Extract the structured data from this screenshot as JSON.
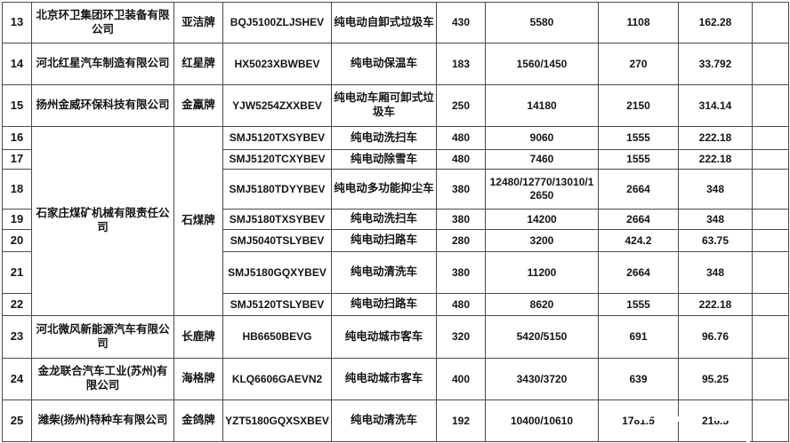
{
  "page": {
    "background_color": "#ffffff",
    "border_color": "#4a4a4a",
    "text_color": "#141414"
  },
  "table": {
    "rows": [
      {
        "no": "13",
        "company": "北京环卫集团环卫装备有限公司",
        "brand": "亚洁牌",
        "model": "BQJ5100ZLJSHEV",
        "vehicle_type": "纯电动自卸式垃圾车",
        "n1": "430",
        "n2": "5580",
        "n3": "1108",
        "n4": "162.28"
      },
      {
        "no": "14",
        "company": "河北红星汽车制造有限公司",
        "brand": "红星牌",
        "model": "HX5023XBWBEV",
        "vehicle_type": "纯电动保温车",
        "n1": "183",
        "n2": "1560/1450",
        "n3": "270",
        "n4": "33.792"
      },
      {
        "no": "15",
        "company": "扬州金威环保科技有限公司",
        "brand": "金蠃牌",
        "model": "YJW5254ZXXBEV",
        "vehicle_type": "纯电动车厢可卸式垃圾车",
        "n1": "250",
        "n2": "14180",
        "n3": "2150",
        "n4": "314.14"
      },
      {
        "no": "16",
        "company": "石家庄煤矿机械有限责任公司",
        "brand": "石煤牌",
        "model": "SMJ5120TXSYBEV",
        "vehicle_type": "纯电动洗扫车",
        "n1": "480",
        "n2": "9060",
        "n3": "1555",
        "n4": "222.18"
      },
      {
        "no": "17",
        "model": "SMJ5120TCXYBEV",
        "vehicle_type": "纯电动除雪车",
        "n1": "480",
        "n2": "7460",
        "n3": "1555",
        "n4": "222.18"
      },
      {
        "no": "18",
        "model": "SMJ5180TDYYBEV",
        "vehicle_type": "纯电动多功能抑尘车",
        "n1": "380",
        "n2": "12480/12770/13010/12650",
        "n3": "2664",
        "n4": "348"
      },
      {
        "no": "19",
        "model": "SMJ5180TXSYBEV",
        "vehicle_type": "纯电动洗扫车",
        "n1": "380",
        "n2": "14200",
        "n3": "2664",
        "n4": "348"
      },
      {
        "no": "20",
        "model": "SMJ5040TSLYBEV",
        "vehicle_type": "纯电动扫路车",
        "n1": "280",
        "n2": "3200",
        "n3": "424.2",
        "n4": "63.75"
      },
      {
        "no": "21",
        "model": "SMJ5180GQXYBEV",
        "vehicle_type": "纯电动清洗车",
        "n1": "380",
        "n2": "11200",
        "n3": "2664",
        "n4": "348"
      },
      {
        "no": "22",
        "model": "SMJ5120TSLYBEV",
        "vehicle_type": "纯电动扫路车",
        "n1": "480",
        "n2": "8620",
        "n3": "1555",
        "n4": "222.18"
      },
      {
        "no": "23",
        "company": "河北微风新能源汽车有限公司",
        "brand": "长鹿牌",
        "model": "HB6650BEVG",
        "vehicle_type": "纯电动城市客车",
        "n1": "320",
        "n2": "5420/5150",
        "n3": "691",
        "n4": "96.76"
      },
      {
        "no": "24",
        "company": "金龙联合汽车工业(苏州)有限公司",
        "brand": "海格牌",
        "model": "KLQ6606GAEVN2",
        "vehicle_type": "纯电动城市客车",
        "n1": "400",
        "n2": "3430/3720",
        "n3": "639",
        "n4": "95.25"
      },
      {
        "no": "25",
        "company": "潍柴(扬州)特种车有限公司",
        "brand": "金鸽牌",
        "model": "YZT5180GQXSXBEV",
        "vehicle_type": "纯电动清洗车",
        "n1": "192",
        "n2": "10400/10610",
        "n3": "1781.5",
        "n4": "218.5"
      }
    ]
  }
}
